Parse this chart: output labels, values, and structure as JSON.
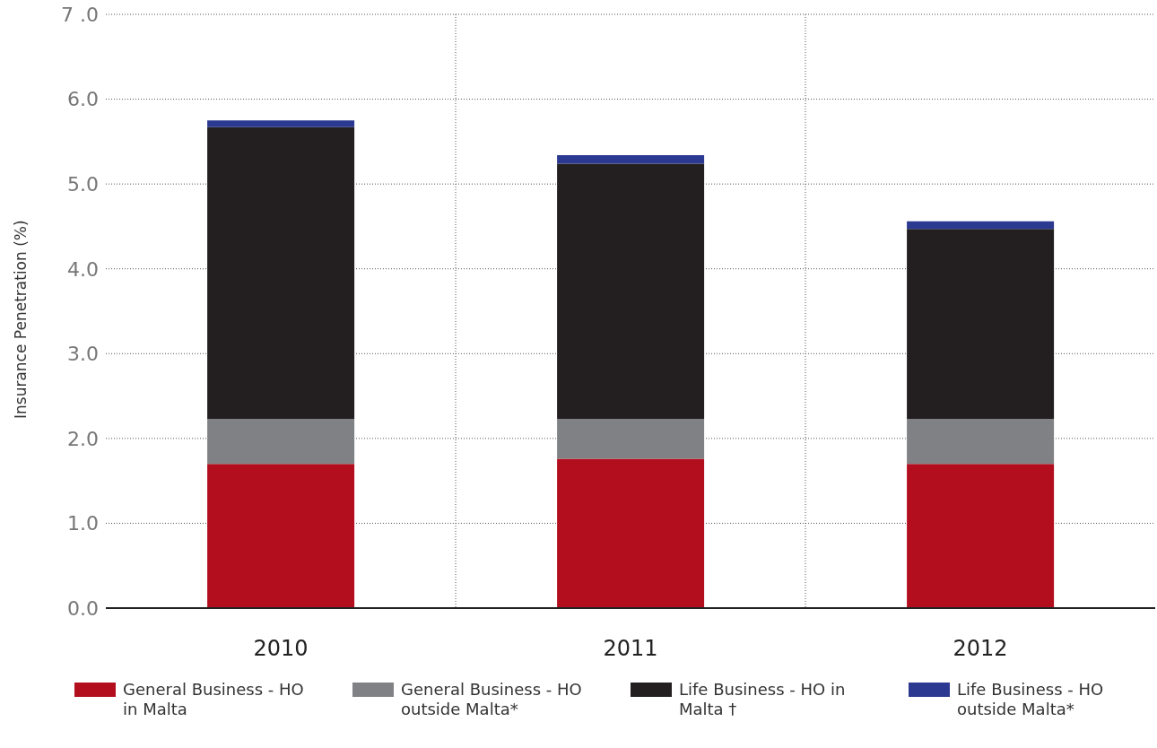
{
  "chart_data": {
    "type": "bar",
    "stacked": true,
    "ylabel": "Insurance Penetration (%)",
    "categories": [
      "2010",
      "2011",
      "2012"
    ],
    "series": [
      {
        "name": "General Business - HO in Malta",
        "color": "#b20e1e",
        "values": [
          1.7,
          1.76,
          1.7
        ]
      },
      {
        "name": "General Business - HO outside Malta*",
        "color": "#808184",
        "values": [
          0.53,
          0.47,
          0.53
        ]
      },
      {
        "name": "Life Business - HO in Malta †",
        "color": "#231f20",
        "values": [
          3.44,
          3.01,
          2.24
        ]
      },
      {
        "name": "Life Business - HO outside Malta*",
        "color": "#2b3990",
        "values": [
          0.08,
          0.1,
          0.09
        ]
      }
    ],
    "ylim": [
      0,
      7
    ],
    "yticks": [
      {
        "value": 0,
        "label": "0.0"
      },
      {
        "value": 1,
        "label": "1.0"
      },
      {
        "value": 2,
        "label": "2.0"
      },
      {
        "value": 3,
        "label": "3.0"
      },
      {
        "value": 4,
        "label": "4.0"
      },
      {
        "value": 5,
        "label": "5.0"
      },
      {
        "value": 6,
        "label": "6.0"
      },
      {
        "value": 7,
        "label": "7 .0"
      }
    ],
    "grid": true,
    "legend": "bottom"
  }
}
